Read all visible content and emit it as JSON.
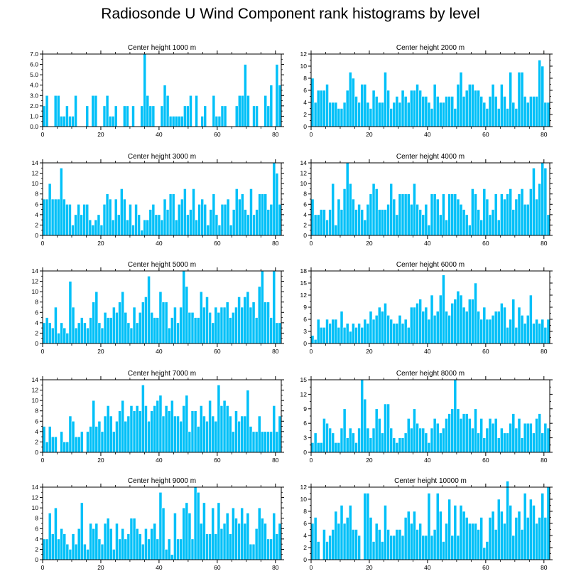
{
  "figure": {
    "title": "Radiosonde U Wind Component rank histograms by level"
  },
  "colors": {
    "bar": "#00c0f8",
    "bar_edge": "#ffffff",
    "axis": "#000000"
  },
  "chart_data": [
    {
      "type": "bar",
      "title": "Center height 1000 m",
      "yticks": [
        "0.0",
        "1.0",
        "2.0",
        "3.0",
        "4.0",
        "5.0",
        "6.0",
        "7.0"
      ],
      "ylim": [
        0,
        7
      ],
      "xticks": [
        "0",
        "20",
        "40",
        "60",
        "80"
      ],
      "xlim": [
        0,
        82
      ],
      "values": [
        2,
        3,
        0,
        0,
        3,
        3,
        1,
        1,
        2,
        1,
        1,
        3,
        0,
        0,
        0,
        2,
        0,
        3,
        3,
        0,
        0,
        2,
        3,
        1,
        1,
        2,
        0,
        0,
        2,
        2,
        0,
        2,
        0,
        0,
        2,
        7,
        3,
        2,
        2,
        0,
        0,
        2,
        4,
        3,
        1,
        1,
        1,
        1,
        1,
        2,
        2,
        3,
        0,
        3,
        0,
        1,
        2,
        0,
        0,
        3,
        1,
        1,
        2,
        2,
        0,
        0,
        0,
        2,
        3,
        3,
        6,
        3,
        0,
        2,
        2,
        0,
        0,
        3,
        2,
        4,
        0,
        6,
        4
      ]
    },
    {
      "type": "bar",
      "title": "Center height 2000 m",
      "yticks": [
        "0",
        "2",
        "4",
        "6",
        "8",
        "10",
        "12"
      ],
      "ylim": [
        0,
        12
      ],
      "xticks": [
        "0",
        "20",
        "40",
        "60",
        "80"
      ],
      "xlim": [
        0,
        82
      ],
      "values": [
        8,
        4,
        6,
        6,
        6,
        7,
        4,
        4,
        4,
        3,
        3,
        4,
        6,
        9,
        8,
        5,
        4,
        7,
        7,
        4,
        3,
        6,
        5,
        4,
        4,
        9,
        6,
        3,
        4,
        5,
        4,
        6,
        5,
        4,
        6,
        6,
        7,
        6,
        5,
        5,
        4,
        3,
        7,
        5,
        4,
        4,
        5,
        5,
        5,
        3,
        7,
        9,
        5,
        6,
        7,
        7,
        6,
        6,
        5,
        4,
        3,
        5,
        7,
        5,
        3,
        7,
        5,
        3,
        9,
        4,
        3,
        9,
        9,
        5,
        4,
        5,
        5,
        5,
        11,
        10,
        4,
        4
      ]
    },
    {
      "type": "bar",
      "title": "Center height 3000 m",
      "yticks": [
        "0",
        "2",
        "4",
        "6",
        "8",
        "10",
        "12",
        "14"
      ],
      "ylim": [
        0,
        14
      ],
      "xticks": [
        "0",
        "20",
        "40",
        "60",
        "80"
      ],
      "xlim": [
        0,
        82
      ],
      "values": [
        7,
        7,
        10,
        7,
        7,
        7,
        13,
        7,
        6,
        6,
        2,
        4,
        6,
        4,
        6,
        6,
        3,
        2,
        3,
        4,
        2,
        6,
        8,
        7,
        3,
        7,
        4,
        9,
        7,
        3,
        6,
        2,
        6,
        4,
        1,
        3,
        3,
        5,
        6,
        4,
        4,
        3,
        7,
        5,
        8,
        8,
        3,
        6,
        7,
        9,
        4,
        5,
        9,
        3,
        6,
        7,
        6,
        2,
        5,
        8,
        4,
        2,
        6,
        6,
        7,
        2,
        5,
        9,
        7,
        8,
        5,
        4,
        9,
        4,
        5,
        8,
        8,
        8,
        5,
        6,
        14,
        12,
        6
      ]
    },
    {
      "type": "bar",
      "title": "Center height 4000 m",
      "yticks": [
        "0",
        "2",
        "4",
        "6",
        "8",
        "10",
        "12",
        "14"
      ],
      "ylim": [
        0,
        14
      ],
      "xticks": [
        "0",
        "20",
        "40",
        "60",
        "80"
      ],
      "xlim": [
        0,
        82
      ],
      "values": [
        7,
        4,
        4,
        5,
        5,
        3,
        5,
        10,
        2,
        7,
        5,
        9,
        14,
        10,
        7,
        5,
        6,
        5,
        3,
        6,
        8,
        10,
        9,
        5,
        5,
        5,
        6,
        10,
        7,
        4,
        8,
        8,
        8,
        8,
        6,
        10,
        6,
        5,
        4,
        6,
        2,
        8,
        8,
        7,
        4,
        8,
        3,
        8,
        8,
        8,
        7,
        6,
        5,
        4,
        2,
        9,
        8,
        5,
        3,
        9,
        7,
        4,
        5,
        8,
        3,
        8,
        7,
        8,
        9,
        5,
        7,
        8,
        9,
        6,
        6,
        9,
        13,
        7,
        10,
        14,
        13,
        4
      ]
    },
    {
      "type": "bar",
      "title": "Center height 5000 m",
      "yticks": [
        "0",
        "2",
        "4",
        "6",
        "8",
        "10",
        "12",
        "14"
      ],
      "ylim": [
        0,
        14
      ],
      "xticks": [
        "0",
        "20",
        "40",
        "60",
        "80"
      ],
      "xlim": [
        0,
        82
      ],
      "values": [
        4,
        5,
        4,
        3,
        7,
        2,
        4,
        3,
        2,
        12,
        7,
        3,
        4,
        5,
        4,
        3,
        5,
        8,
        10,
        4,
        3,
        6,
        5,
        5,
        7,
        6,
        8,
        10,
        6,
        4,
        3,
        7,
        4,
        6,
        8,
        9,
        13,
        6,
        5,
        5,
        10,
        8,
        8,
        3,
        5,
        7,
        4,
        7,
        14,
        11,
        6,
        6,
        5,
        5,
        10,
        7,
        9,
        6,
        4,
        7,
        6,
        7,
        7,
        8,
        5,
        6,
        7,
        9,
        7,
        9,
        10,
        7,
        8,
        5,
        11,
        14,
        8,
        8,
        5,
        14,
        4,
        4
      ]
    },
    {
      "type": "bar",
      "title": "Center height 6000 m",
      "yticks": [
        "0",
        "3",
        "6",
        "9",
        "12",
        "15",
        "18"
      ],
      "ylim": [
        0,
        18
      ],
      "xticks": [
        "0",
        "20",
        "40",
        "60",
        "80"
      ],
      "xlim": [
        0,
        82
      ],
      "values": [
        2,
        1,
        6,
        4,
        4,
        6,
        5,
        6,
        6,
        4,
        8,
        4,
        5,
        3,
        5,
        4,
        5,
        4,
        6,
        5,
        8,
        6,
        7,
        9,
        8,
        10,
        7,
        6,
        5,
        5,
        7,
        5,
        6,
        4,
        9,
        9,
        10,
        11,
        8,
        9,
        6,
        12,
        7,
        8,
        12,
        17,
        8,
        7,
        10,
        11,
        13,
        12,
        9,
        8,
        11,
        11,
        15,
        8,
        6,
        9,
        6,
        6,
        7,
        8,
        8,
        10,
        9,
        4,
        6,
        11,
        4,
        9,
        7,
        5,
        7,
        12,
        5,
        6,
        5,
        6,
        4,
        6
      ]
    },
    {
      "type": "bar",
      "title": "Center height 7000 m",
      "yticks": [
        "0",
        "2",
        "4",
        "6",
        "8",
        "10",
        "12",
        "14"
      ],
      "ylim": [
        0,
        14
      ],
      "xticks": [
        "0",
        "20",
        "40",
        "60",
        "80"
      ],
      "xlim": [
        0,
        82
      ],
      "values": [
        5,
        2,
        5,
        3,
        3,
        0,
        4,
        2,
        2,
        7,
        6,
        3,
        3,
        4,
        0,
        4,
        5,
        10,
        5,
        6,
        4,
        7,
        9,
        7,
        4,
        6,
        8,
        10,
        6,
        7,
        9,
        8,
        9,
        8,
        13,
        9,
        6,
        8,
        9,
        10,
        11,
        7,
        9,
        8,
        10,
        7,
        7,
        6,
        9,
        11,
        4,
        8,
        8,
        5,
        9,
        7,
        6,
        10,
        7,
        6,
        13,
        9,
        10,
        9,
        7,
        4,
        8,
        6,
        7,
        7,
        12,
        5,
        4,
        4,
        7,
        4,
        4,
        4,
        4,
        9,
        4,
        7
      ]
    },
    {
      "type": "bar",
      "title": "Center height 8000 m",
      "yticks": [
        "0",
        "3",
        "6",
        "9",
        "12",
        "15"
      ],
      "ylim": [
        0,
        15
      ],
      "xticks": [
        "0",
        "20",
        "40",
        "60",
        "80"
      ],
      "xlim": [
        0,
        82
      ],
      "values": [
        2,
        4,
        2,
        2,
        7,
        6,
        5,
        4,
        2,
        2,
        5,
        9,
        3,
        5,
        4,
        2,
        5,
        15,
        11,
        5,
        3,
        5,
        9,
        7,
        4,
        10,
        10,
        5,
        3,
        2,
        3,
        3,
        4,
        7,
        5,
        9,
        6,
        5,
        5,
        4,
        2,
        5,
        7,
        6,
        4,
        5,
        7,
        8,
        9,
        15,
        9,
        7,
        8,
        8,
        7,
        5,
        9,
        4,
        7,
        3,
        5,
        7,
        6,
        7,
        3,
        5,
        4,
        4,
        6,
        8,
        5,
        7,
        3,
        6,
        6,
        6,
        4,
        7,
        8,
        4,
        6,
        5
      ]
    },
    {
      "type": "bar",
      "title": "Center height 9000 m",
      "yticks": [
        "0",
        "2",
        "4",
        "6",
        "8",
        "10",
        "12",
        "14"
      ],
      "ylim": [
        0,
        14
      ],
      "xticks": [
        "0",
        "20",
        "40",
        "60",
        "80"
      ],
      "xlim": [
        0,
        82
      ],
      "values": [
        4,
        4,
        9,
        5,
        10,
        4,
        6,
        5,
        3,
        2,
        5,
        3,
        6,
        11,
        3,
        2,
        7,
        6,
        7,
        4,
        3,
        7,
        8,
        6,
        2,
        7,
        4,
        6,
        4,
        5,
        8,
        8,
        6,
        5,
        3,
        6,
        4,
        6,
        7,
        4,
        13,
        10,
        2,
        4,
        1,
        9,
        4,
        4,
        10,
        11,
        9,
        4,
        14,
        13,
        7,
        11,
        5,
        5,
        10,
        5,
        11,
        6,
        7,
        9,
        5,
        10,
        8,
        7,
        10,
        7,
        9,
        3,
        3,
        6,
        10,
        8,
        7,
        4,
        4,
        9,
        5,
        7
      ]
    },
    {
      "type": "bar",
      "title": "Center height 10000 m",
      "yticks": [
        "0",
        "2",
        "4",
        "6",
        "8",
        "10",
        "12"
      ],
      "ylim": [
        0,
        12
      ],
      "xticks": [
        "0",
        "20",
        "40",
        "60",
        "80"
      ],
      "xlim": [
        0,
        82
      ],
      "values": [
        6,
        7,
        3,
        0,
        5,
        3,
        4,
        5,
        8,
        6,
        9,
        6,
        7,
        9,
        5,
        5,
        4,
        0,
        11,
        11,
        7,
        3,
        6,
        5,
        3,
        9,
        5,
        4,
        4,
        5,
        5,
        4,
        7,
        8,
        6,
        8,
        5,
        6,
        4,
        4,
        11,
        4,
        5,
        11,
        8,
        3,
        6,
        10,
        4,
        9,
        4,
        9,
        8,
        7,
        6,
        6,
        6,
        5,
        7,
        2,
        3,
        7,
        8,
        5,
        10,
        8,
        6,
        13,
        9,
        4,
        7,
        8,
        5,
        11,
        7,
        10,
        9,
        6,
        7,
        11,
        7,
        12
      ]
    }
  ]
}
